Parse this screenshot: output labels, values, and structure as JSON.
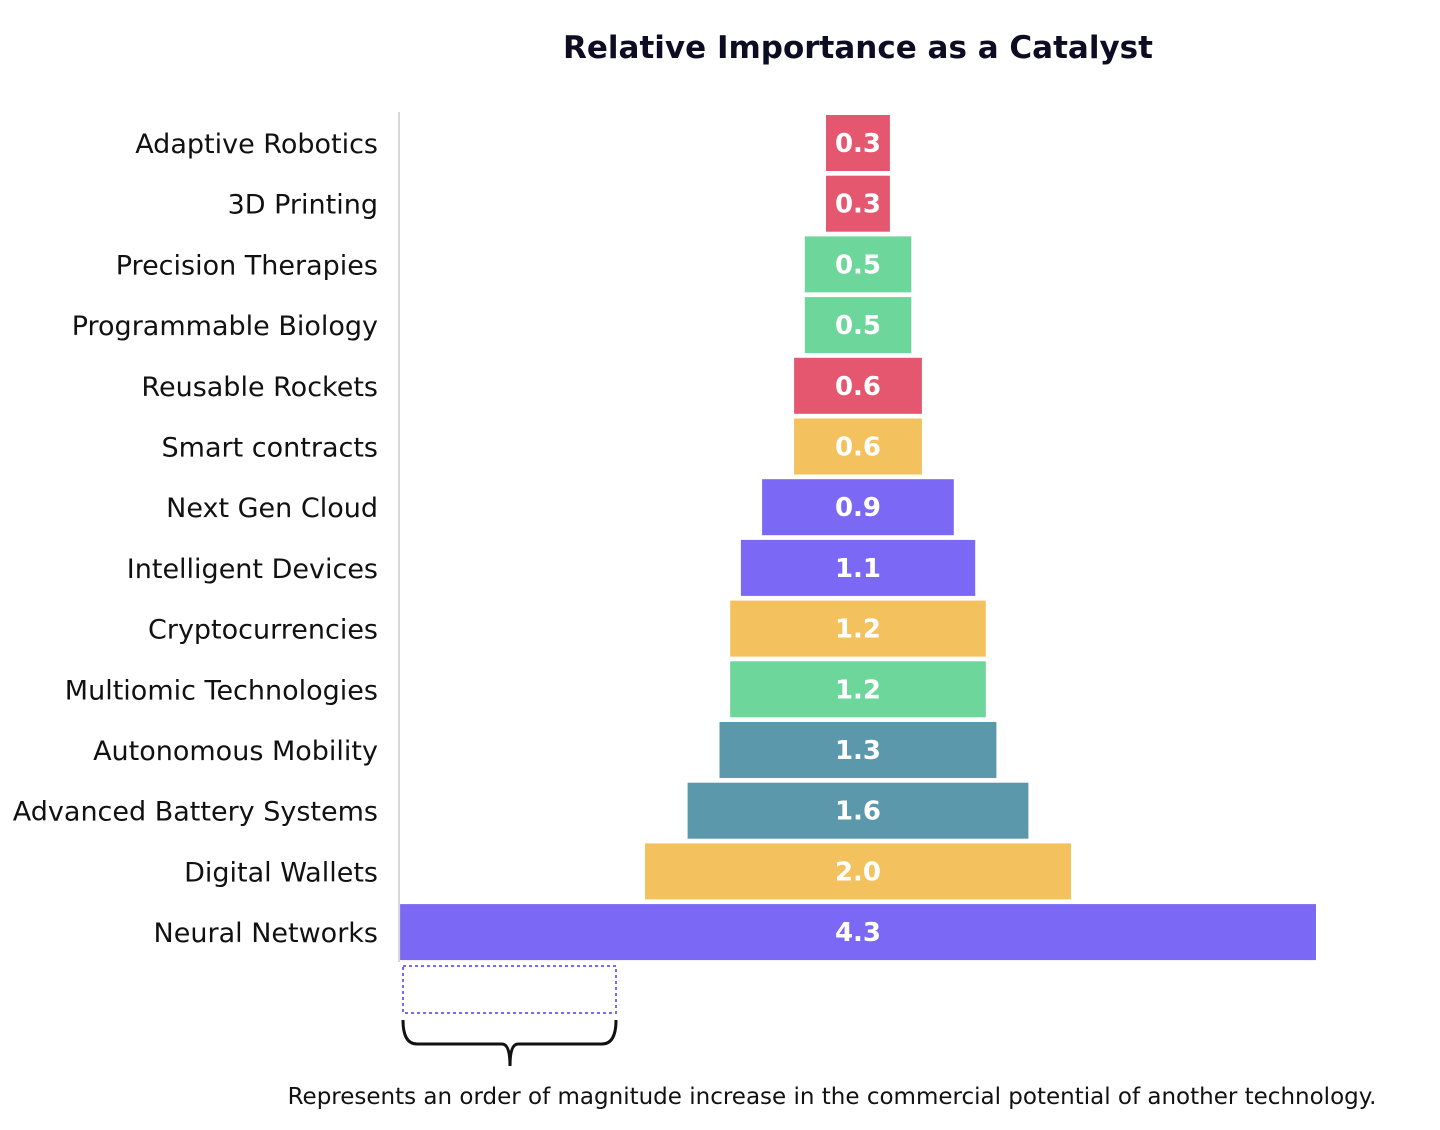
{
  "chart_data": {
    "type": "bar",
    "orientation": "horizontal",
    "title": "Relative Importance as a Catalyst",
    "categories": [
      "Adaptive Robotics",
      "3D Printing",
      "Precision Therapies",
      "Programmable Biology",
      "Reusable Rockets",
      "Smart contracts",
      "Next Gen Cloud",
      "Intelligent Devices",
      "Cryptocurrencies",
      "Multiomic Technologies",
      "Autonomous Mobility",
      "Advanced Battery Systems",
      "Digital Wallets",
      "Neural Networks"
    ],
    "values": [
      0.3,
      0.3,
      0.5,
      0.5,
      0.6,
      0.6,
      0.9,
      1.1,
      1.2,
      1.2,
      1.3,
      1.6,
      2.0,
      4.3
    ],
    "value_labels": [
      "0.3",
      "0.3",
      "0.5",
      "0.5",
      "0.6",
      "0.6",
      "0.9",
      "1.1",
      "1.2",
      "1.2",
      "1.3",
      "1.6",
      "2.0",
      "4.3"
    ],
    "colors": [
      "#e5566f",
      "#e5566f",
      "#6dd69a",
      "#6dd69a",
      "#e5566f",
      "#f3c15d",
      "#7b68f4",
      "#7b68f4",
      "#f3c15d",
      "#6dd69a",
      "#5b98ab",
      "#5b98ab",
      "#f3c15d",
      "#7b68f4"
    ],
    "bar_alignment": "centered",
    "grid": false,
    "legend": "none",
    "scale_marker": {
      "value": 1.0,
      "note": "Represents an order of magnitude increase in the commercial potential of another technology.",
      "color": "#7b68f4"
    }
  }
}
